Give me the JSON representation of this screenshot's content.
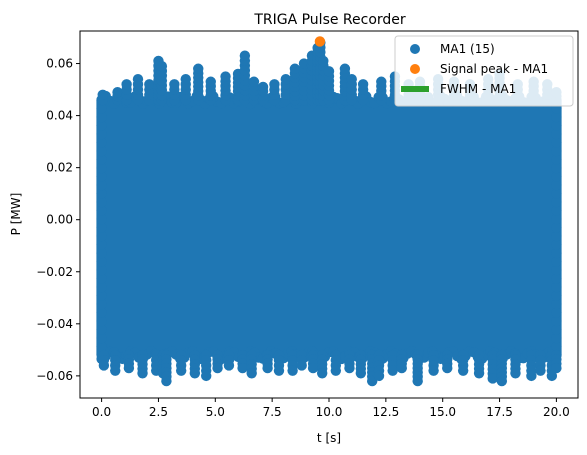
{
  "chart_data": {
    "type": "scatter",
    "title": "TRIGA Pulse Recorder",
    "xlabel": "t [s]",
    "ylabel": "P [MW]",
    "xlim": [
      -0.95,
      20.95
    ],
    "ylim": [
      -0.0685,
      0.0725
    ],
    "xticks": [
      0.0,
      2.5,
      5.0,
      7.5,
      10.0,
      12.5,
      15.0,
      17.5,
      20.0
    ],
    "xtick_labels": [
      "0.0",
      "2.5",
      "5.0",
      "7.5",
      "10.0",
      "12.5",
      "15.0",
      "17.5",
      "20.0"
    ],
    "yticks": [
      -0.06,
      -0.04,
      -0.02,
      0.0,
      0.02,
      0.04,
      0.06
    ],
    "ytick_labels": [
      "−0.06",
      "−0.04",
      "−0.02",
      "0.00",
      "0.02",
      "0.04",
      "0.06"
    ],
    "grid": false,
    "legend_position": "upper-right",
    "series": [
      {
        "name": "MA1 (15)",
        "marker": "circle",
        "color": "#1f77b4",
        "x_range": [
          0.0,
          20.0
        ],
        "band": [
          -0.052,
          0.046
        ],
        "upper_outliers": [
          [
            0.05,
            0.048
          ],
          [
            0.7,
            0.049
          ],
          [
            1.1,
            0.052
          ],
          [
            1.6,
            0.054
          ],
          [
            2.1,
            0.052
          ],
          [
            2.5,
            0.061
          ],
          [
            2.65,
            0.059
          ],
          [
            3.2,
            0.052
          ],
          [
            3.7,
            0.054
          ],
          [
            4.25,
            0.058
          ],
          [
            4.8,
            0.053
          ],
          [
            5.45,
            0.055
          ],
          [
            6.0,
            0.056
          ],
          [
            6.3,
            0.063
          ],
          [
            6.7,
            0.053
          ],
          [
            7.1,
            0.051
          ],
          [
            7.6,
            0.052
          ],
          [
            8.1,
            0.054
          ],
          [
            8.5,
            0.058
          ],
          [
            8.9,
            0.06
          ],
          [
            9.25,
            0.063
          ],
          [
            9.5,
            0.066
          ],
          [
            9.62,
            0.068
          ],
          [
            9.75,
            0.061
          ],
          [
            10.0,
            0.057
          ],
          [
            10.7,
            0.058
          ],
          [
            11.0,
            0.054
          ],
          [
            11.5,
            0.052
          ],
          [
            12.3,
            0.053
          ],
          [
            12.9,
            0.055
          ],
          [
            13.5,
            0.052
          ],
          [
            14.0,
            0.053
          ],
          [
            14.8,
            0.054
          ],
          [
            15.5,
            0.053
          ],
          [
            16.2,
            0.052
          ],
          [
            17.0,
            0.054
          ],
          [
            17.5,
            0.056
          ],
          [
            18.3,
            0.052
          ],
          [
            19.0,
            0.053
          ],
          [
            19.6,
            0.052
          ],
          [
            20.0,
            0.049
          ]
        ],
        "lower_outliers": [
          [
            0.1,
            -0.056
          ],
          [
            0.6,
            -0.058
          ],
          [
            1.2,
            -0.057
          ],
          [
            1.8,
            -0.059
          ],
          [
            2.4,
            -0.058
          ],
          [
            2.7,
            -0.059
          ],
          [
            2.85,
            -0.062
          ],
          [
            3.5,
            -0.058
          ],
          [
            4.1,
            -0.059
          ],
          [
            4.6,
            -0.06
          ],
          [
            5.1,
            -0.057
          ],
          [
            5.6,
            -0.056
          ],
          [
            6.2,
            -0.057
          ],
          [
            6.6,
            -0.059
          ],
          [
            7.3,
            -0.057
          ],
          [
            7.8,
            -0.058
          ],
          [
            8.4,
            -0.058
          ],
          [
            8.8,
            -0.056
          ],
          [
            9.3,
            -0.057
          ],
          [
            9.7,
            -0.059
          ],
          [
            10.3,
            -0.058
          ],
          [
            10.9,
            -0.057
          ],
          [
            11.4,
            -0.059
          ],
          [
            11.9,
            -0.062
          ],
          [
            12.2,
            -0.06
          ],
          [
            12.8,
            -0.058
          ],
          [
            13.2,
            -0.057
          ],
          [
            13.9,
            -0.062
          ],
          [
            14.6,
            -0.058
          ],
          [
            15.2,
            -0.057
          ],
          [
            15.9,
            -0.058
          ],
          [
            16.6,
            -0.059
          ],
          [
            17.2,
            -0.061
          ],
          [
            17.6,
            -0.062
          ],
          [
            18.2,
            -0.059
          ],
          [
            18.9,
            -0.06
          ],
          [
            19.3,
            -0.058
          ],
          [
            19.8,
            -0.06
          ],
          [
            20.0,
            -0.057
          ]
        ]
      },
      {
        "name": "Signal peak - MA1",
        "marker": "circle",
        "color": "#ff7f0e",
        "points": [
          [
            9.6,
            0.0685
          ]
        ]
      },
      {
        "name": "FWHM - MA1",
        "marker": "line",
        "color": "#2ca02c",
        "points": []
      }
    ]
  }
}
